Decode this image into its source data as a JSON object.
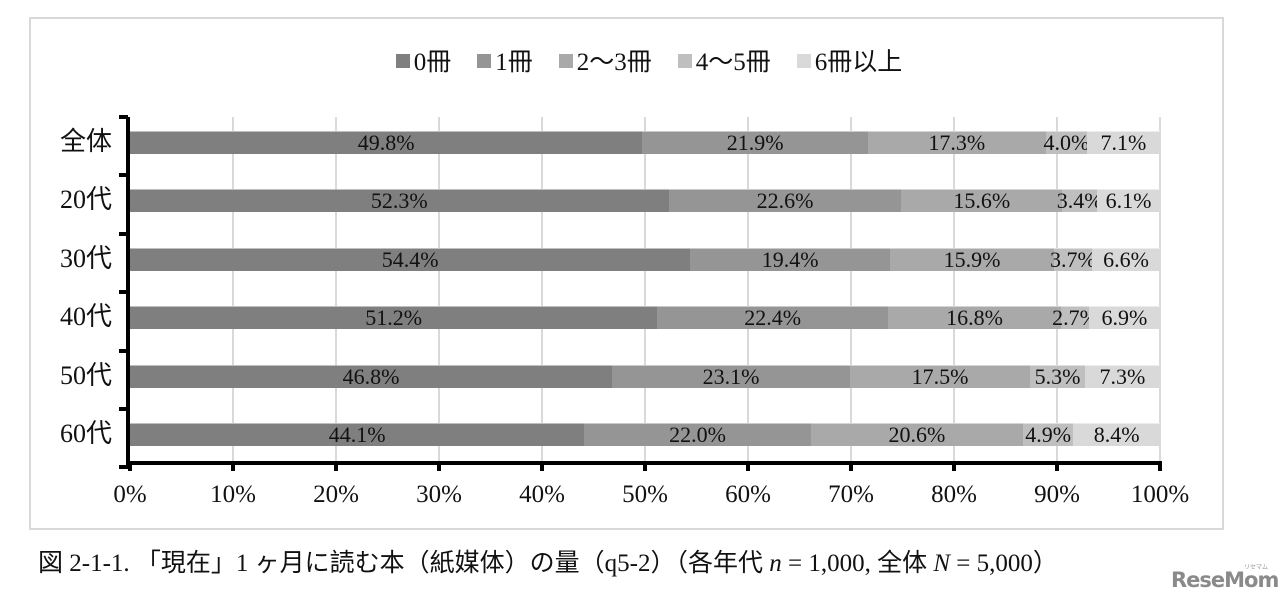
{
  "chart_data": {
    "type": "bar",
    "orientation": "horizontal",
    "stacked": true,
    "title": "",
    "xlabel": "",
    "ylabel": "",
    "xlim": [
      0,
      100
    ],
    "grid": true,
    "legend_position": "top",
    "categories": [
      "全体",
      "20代",
      "30代",
      "40代",
      "50代",
      "60代"
    ],
    "series": [
      {
        "name": "0冊",
        "color": "#7f7f7f",
        "values": [
          49.8,
          52.3,
          54.4,
          51.2,
          46.8,
          44.1
        ]
      },
      {
        "name": "1冊",
        "color": "#959595",
        "values": [
          21.9,
          22.6,
          19.4,
          22.4,
          23.1,
          22.0
        ]
      },
      {
        "name": "2〜3冊",
        "color": "#a9a9a9",
        "values": [
          17.3,
          15.6,
          15.9,
          16.8,
          17.5,
          20.6
        ]
      },
      {
        "name": "4〜5冊",
        "color": "#bfbfbf",
        "values": [
          4.0,
          3.4,
          3.7,
          2.7,
          5.3,
          4.9
        ]
      },
      {
        "name": "6冊以上",
        "color": "#d9d9d9",
        "values": [
          7.1,
          6.1,
          6.6,
          6.9,
          7.3,
          8.4
        ]
      }
    ],
    "x_tick_labels": [
      "0%",
      "10%",
      "20%",
      "30%",
      "40%",
      "50%",
      "60%",
      "70%",
      "80%",
      "90%",
      "100%"
    ],
    "data_labels": [
      [
        "49.8%",
        "21.9%",
        "17.3%",
        "4.0%",
        "7.1%"
      ],
      [
        "52.3%",
        "22.6%",
        "15.6%",
        "3.4%",
        "6.1%"
      ],
      [
        "54.4%",
        "19.4%",
        "15.9%",
        "3.7%",
        "6.6%"
      ],
      [
        "51.2%",
        "22.4%",
        "16.8%",
        "2.7%",
        "6.9%"
      ],
      [
        "46.8%",
        "23.1%",
        "17.5%",
        "5.3%",
        "7.3%"
      ],
      [
        "44.1%",
        "22.0%",
        "20.6%",
        "4.9%",
        "8.4%"
      ]
    ]
  },
  "legend": [
    "0冊",
    "1冊",
    "2〜3冊",
    "4〜5冊",
    "6冊以上"
  ],
  "caption": {
    "prefix": "図 2-1-1. 「現在」1 ヶ月に読む本（紙媒体）の量（q5-2）（各年代 ",
    "n_var": "n",
    "n_val": " = 1,000,  全体 ",
    "N_var": "N",
    "N_val": " = 5,000）"
  },
  "watermark": {
    "text": "ReseMom",
    "small": "リセマム"
  }
}
